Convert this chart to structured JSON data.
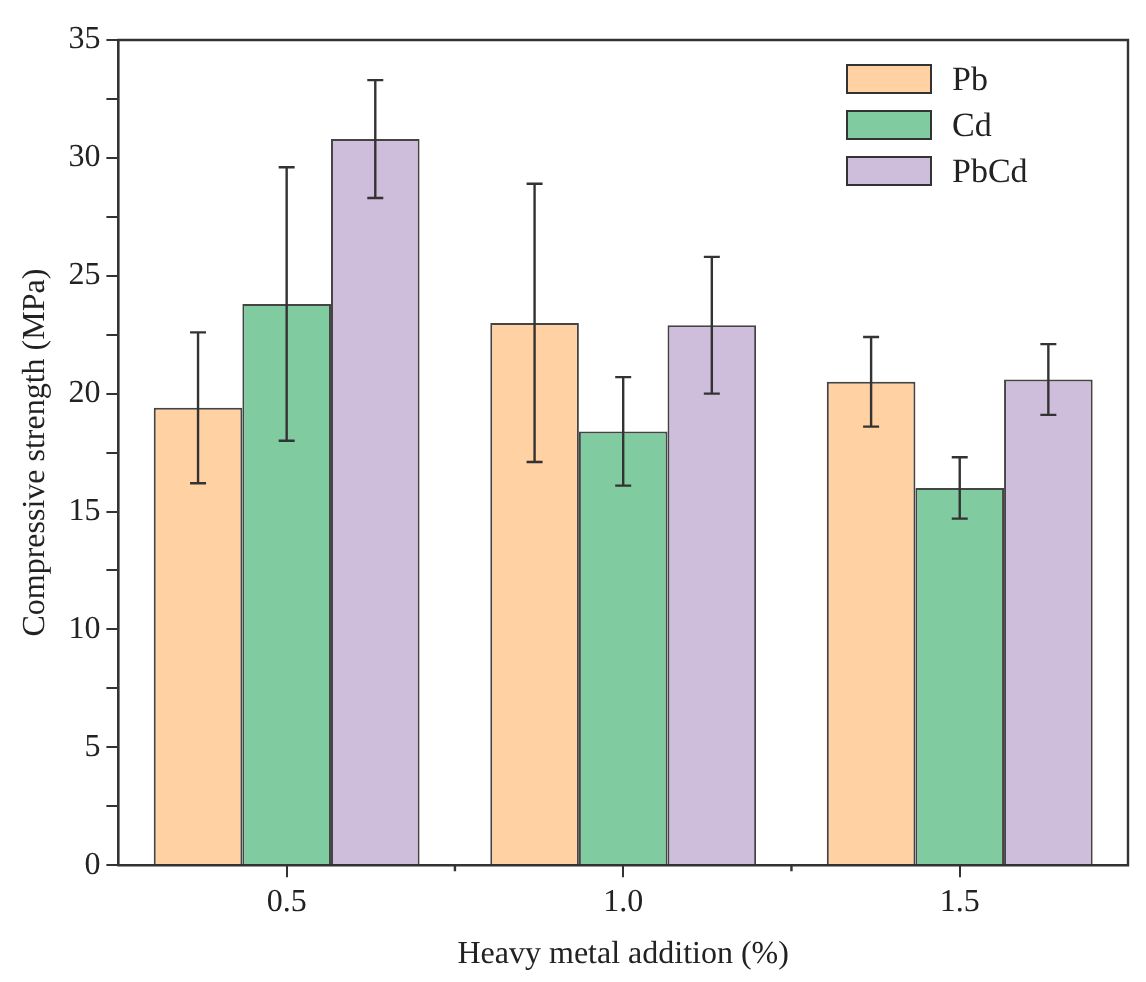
{
  "chart_data": {
    "type": "bar",
    "xlabel": "Heavy metal addition (%)",
    "ylabel": "Compressive strength (MPa)",
    "categories": [
      "0.5",
      "1.0",
      "1.5"
    ],
    "series": [
      {
        "name": "Pb",
        "color": "#ffd1a3",
        "values": [
          19.4,
          23.0,
          20.5
        ],
        "errors": [
          3.2,
          5.9,
          1.9
        ]
      },
      {
        "name": "Cd",
        "color": "#80cba0",
        "values": [
          23.8,
          18.4,
          16.0
        ],
        "errors": [
          5.8,
          2.3,
          1.3
        ]
      },
      {
        "name": "PbCd",
        "color": "#cfbedb",
        "values": [
          30.8,
          22.9,
          20.6
        ],
        "errors": [
          2.5,
          2.9,
          1.5
        ]
      }
    ],
    "ylim": [
      0,
      35
    ],
    "yticks": [
      0,
      {
        "value": 2.5,
        "label": null
      },
      5,
      {
        "value": 7.5,
        "label": null
      },
      10,
      {
        "value": 12.5,
        "label": null
      },
      15,
      {
        "value": 17.5,
        "label": null
      },
      20,
      {
        "value": 22.5,
        "label": null
      },
      25,
      {
        "value": 27.5,
        "label": null
      },
      30,
      {
        "value": 32.5,
        "label": null
      },
      35
    ],
    "grid": false,
    "legend": "top right"
  }
}
